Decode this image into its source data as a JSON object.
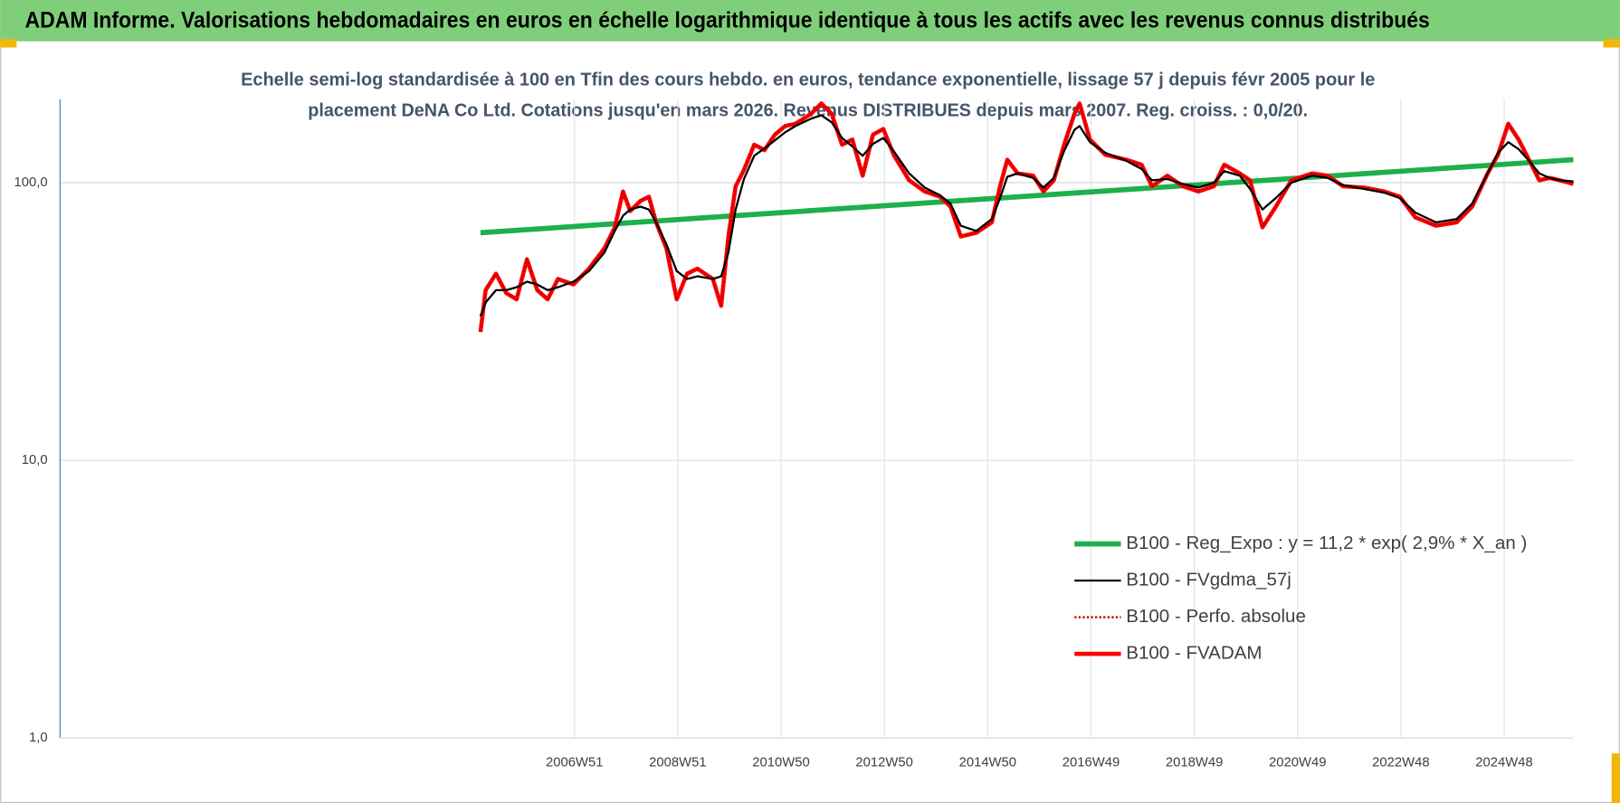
{
  "chart_data": {
    "type": "line",
    "title": "ADAM Informe. Valorisations hebdomadaires en euros en échelle logarithmique identique à tous les actifs avec les revenus connus distribués",
    "subtitle": [
      "Echelle semi-log standardisée à 100 en Tfin des cours hebdo. en euros, tendance exponentielle, lissage 57 j depuis févr 2005 pour le",
      "placement DeNA Co Ltd. Cotations jusqu'en mars 2026. Revenus DISTRIBUES depuis mars 2007. Reg. croiss. : 0,0/20."
    ],
    "log_y": true,
    "grid": true,
    "legend": "lower right",
    "xlim": [
      1997,
      2026.3
    ],
    "xticks": [
      {
        "value": 2006.96,
        "label": "2006W51"
      },
      {
        "value": 2008.96,
        "label": "2008W51"
      },
      {
        "value": 2010.96,
        "label": "2010W50"
      },
      {
        "value": 2012.96,
        "label": "2012W50"
      },
      {
        "value": 2014.96,
        "label": "2014W50"
      },
      {
        "value": 2016.96,
        "label": "2016W49"
      },
      {
        "value": 2018.96,
        "label": "2018W49"
      },
      {
        "value": 2020.96,
        "label": "2020W49"
      },
      {
        "value": 2022.96,
        "label": "2022W48"
      },
      {
        "value": 2024.96,
        "label": "2024W48"
      }
    ],
    "ylim": [
      1,
      200
    ],
    "yticks": [
      {
        "value": 1,
        "label": "1,0"
      },
      {
        "value": 10,
        "label": "10,0"
      },
      {
        "value": 100,
        "label": "100,0"
      }
    ],
    "series": [
      {
        "name": "B100 - Reg_Expo : y = 11,2 * exp( 2,9% *  X_an )",
        "color": "#1db04b",
        "line_style": "solid",
        "x": [
          2005.14,
          2026.3
        ],
        "values": [
          66,
          121
        ]
      },
      {
        "name": "B100 - FVgdma_57j",
        "color": "#000000",
        "line_style": "solid",
        "x": [
          2005.14,
          2005.24,
          2005.44,
          2005.64,
          2005.84,
          2006.04,
          2006.24,
          2006.44,
          2006.64,
          2006.94,
          2007.24,
          2007.54,
          2007.74,
          2007.9,
          2008.04,
          2008.24,
          2008.4,
          2008.54,
          2008.74,
          2008.94,
          2009.14,
          2009.34,
          2009.64,
          2009.8,
          2009.94,
          2010.08,
          2010.24,
          2010.44,
          2010.64,
          2010.84,
          2011.04,
          2011.24,
          2011.54,
          2011.74,
          2011.94,
          2012.14,
          2012.34,
          2012.54,
          2012.74,
          2012.94,
          2013.14,
          2013.44,
          2013.74,
          2014.04,
          2014.24,
          2014.44,
          2014.74,
          2015.04,
          2015.2,
          2015.34,
          2015.54,
          2015.84,
          2016.04,
          2016.24,
          2016.44,
          2016.64,
          2016.74,
          2016.94,
          2017.24,
          2017.64,
          2017.94,
          2018.14,
          2018.44,
          2018.74,
          2019.04,
          2019.34,
          2019.54,
          2019.84,
          2020.04,
          2020.28,
          2020.54,
          2020.84,
          2021.24,
          2021.54,
          2021.84,
          2022.24,
          2022.64,
          2022.94,
          2023.24,
          2023.64,
          2024.04,
          2024.34,
          2024.64,
          2024.84,
          2025.04,
          2025.24,
          2025.44,
          2025.64,
          2025.84,
          2026.04,
          2026.3
        ],
        "values": [
          33,
          37,
          41,
          41,
          42,
          44,
          43,
          41,
          42,
          44,
          48,
          56,
          67,
          76,
          80,
          82,
          80,
          72,
          60,
          48,
          45,
          46,
          45,
          46,
          56,
          80,
          103,
          125,
          133,
          142,
          152,
          160,
          170,
          175,
          165,
          145,
          135,
          125,
          138,
          145,
          130,
          108,
          96,
          90,
          84,
          70,
          67,
          74,
          88,
          105,
          108,
          104,
          96,
          104,
          130,
          155,
          160,
          140,
          128,
          120,
          112,
          102,
          103,
          99,
          96,
          100,
          110,
          106,
          95,
          80,
          88,
          100,
          106,
          104,
          98,
          95,
          92,
          88,
          78,
          72,
          74,
          84,
          108,
          128,
          140,
          132,
          120,
          108,
          104,
          102,
          101
        ]
      },
      {
        "name": "B100 - Perfo. absolue",
        "color": "#c00000",
        "line_style": "dotted",
        "x": [
          2005.14,
          2005.24,
          2005.44,
          2005.64,
          2005.84,
          2006.04,
          2006.24,
          2006.44,
          2006.64,
          2006.94,
          2007.24,
          2007.54,
          2007.74,
          2007.9,
          2008.04,
          2008.24,
          2008.4,
          2008.54,
          2008.74,
          2008.94,
          2009.14,
          2009.34,
          2009.64,
          2009.8,
          2009.94,
          2010.08,
          2010.24,
          2010.44,
          2010.64,
          2010.84,
          2011.04,
          2011.24,
          2011.54,
          2011.74,
          2011.94,
          2012.14,
          2012.34,
          2012.54,
          2012.74,
          2012.94,
          2013.14,
          2013.44,
          2013.74,
          2014.04,
          2014.24,
          2014.44,
          2014.74,
          2015.04,
          2015.2,
          2015.34,
          2015.54,
          2015.84,
          2016.04,
          2016.24,
          2016.44,
          2016.64,
          2016.74,
          2016.94,
          2017.24,
          2017.64,
          2017.94,
          2018.14,
          2018.44,
          2018.74,
          2019.04,
          2019.34,
          2019.54,
          2019.84,
          2020.04,
          2020.28,
          2020.54,
          2020.84,
          2021.24,
          2021.54,
          2021.84,
          2022.24,
          2022.64,
          2022.94,
          2023.24,
          2023.64,
          2024.04,
          2024.34,
          2024.64,
          2024.84,
          2025.04,
          2025.24,
          2025.44,
          2025.64,
          2025.84,
          2026.04,
          2026.3
        ],
        "values": [
          29,
          41,
          47,
          40,
          38,
          53,
          41,
          38,
          45,
          43,
          49,
          58,
          69,
          93,
          79,
          86,
          89,
          72,
          58,
          38,
          47,
          49,
          45,
          36,
          64,
          97,
          111,
          137,
          131,
          149,
          160,
          163,
          177,
          193,
          177,
          137,
          143,
          106,
          149,
          156,
          126,
          102,
          93,
          89,
          82,
          64,
          66,
          72,
          97,
          121,
          108,
          106,
          93,
          102,
          137,
          177,
          193,
          143,
          126,
          121,
          116,
          97,
          106,
          97,
          93,
          97,
          116,
          108,
          102,
          69,
          82,
          102,
          108,
          106,
          97,
          96,
          93,
          89,
          75,
          70,
          72,
          82,
          108,
          126,
          163,
          143,
          121,
          102,
          104,
          102,
          99
        ]
      },
      {
        "name": "B100 - FVADAM",
        "color": "#ff0000",
        "line_style": "solid",
        "x": [
          2005.14,
          2005.24,
          2005.44,
          2005.64,
          2005.84,
          2006.04,
          2006.24,
          2006.44,
          2006.64,
          2006.94,
          2007.24,
          2007.54,
          2007.74,
          2007.9,
          2008.04,
          2008.24,
          2008.4,
          2008.54,
          2008.74,
          2008.94,
          2009.14,
          2009.34,
          2009.64,
          2009.8,
          2009.94,
          2010.08,
          2010.24,
          2010.44,
          2010.64,
          2010.84,
          2011.04,
          2011.24,
          2011.54,
          2011.74,
          2011.94,
          2012.14,
          2012.34,
          2012.54,
          2012.74,
          2012.94,
          2013.14,
          2013.44,
          2013.74,
          2014.04,
          2014.24,
          2014.44,
          2014.74,
          2015.04,
          2015.2,
          2015.34,
          2015.54,
          2015.84,
          2016.04,
          2016.24,
          2016.44,
          2016.64,
          2016.74,
          2016.94,
          2017.24,
          2017.64,
          2017.94,
          2018.14,
          2018.44,
          2018.74,
          2019.04,
          2019.34,
          2019.54,
          2019.84,
          2020.04,
          2020.28,
          2020.54,
          2020.84,
          2021.24,
          2021.54,
          2021.84,
          2022.24,
          2022.64,
          2022.94,
          2023.24,
          2023.64,
          2024.04,
          2024.34,
          2024.64,
          2024.84,
          2025.04,
          2025.24,
          2025.44,
          2025.64,
          2025.84,
          2026.04,
          2026.3
        ],
        "values": [
          29,
          41,
          47,
          40,
          38,
          53,
          41,
          38,
          45,
          43,
          49,
          58,
          69,
          93,
          79,
          86,
          89,
          72,
          58,
          38,
          47,
          49,
          45,
          36,
          64,
          97,
          111,
          137,
          131,
          149,
          160,
          163,
          177,
          193,
          177,
          137,
          143,
          106,
          149,
          156,
          126,
          102,
          93,
          89,
          82,
          64,
          66,
          72,
          97,
          121,
          108,
          106,
          93,
          102,
          137,
          177,
          193,
          143,
          126,
          121,
          116,
          97,
          106,
          97,
          93,
          97,
          116,
          108,
          102,
          69,
          82,
          102,
          108,
          106,
          97,
          96,
          93,
          89,
          75,
          70,
          72,
          82,
          108,
          126,
          163,
          143,
          121,
          102,
          104,
          102,
          99
        ]
      }
    ]
  }
}
